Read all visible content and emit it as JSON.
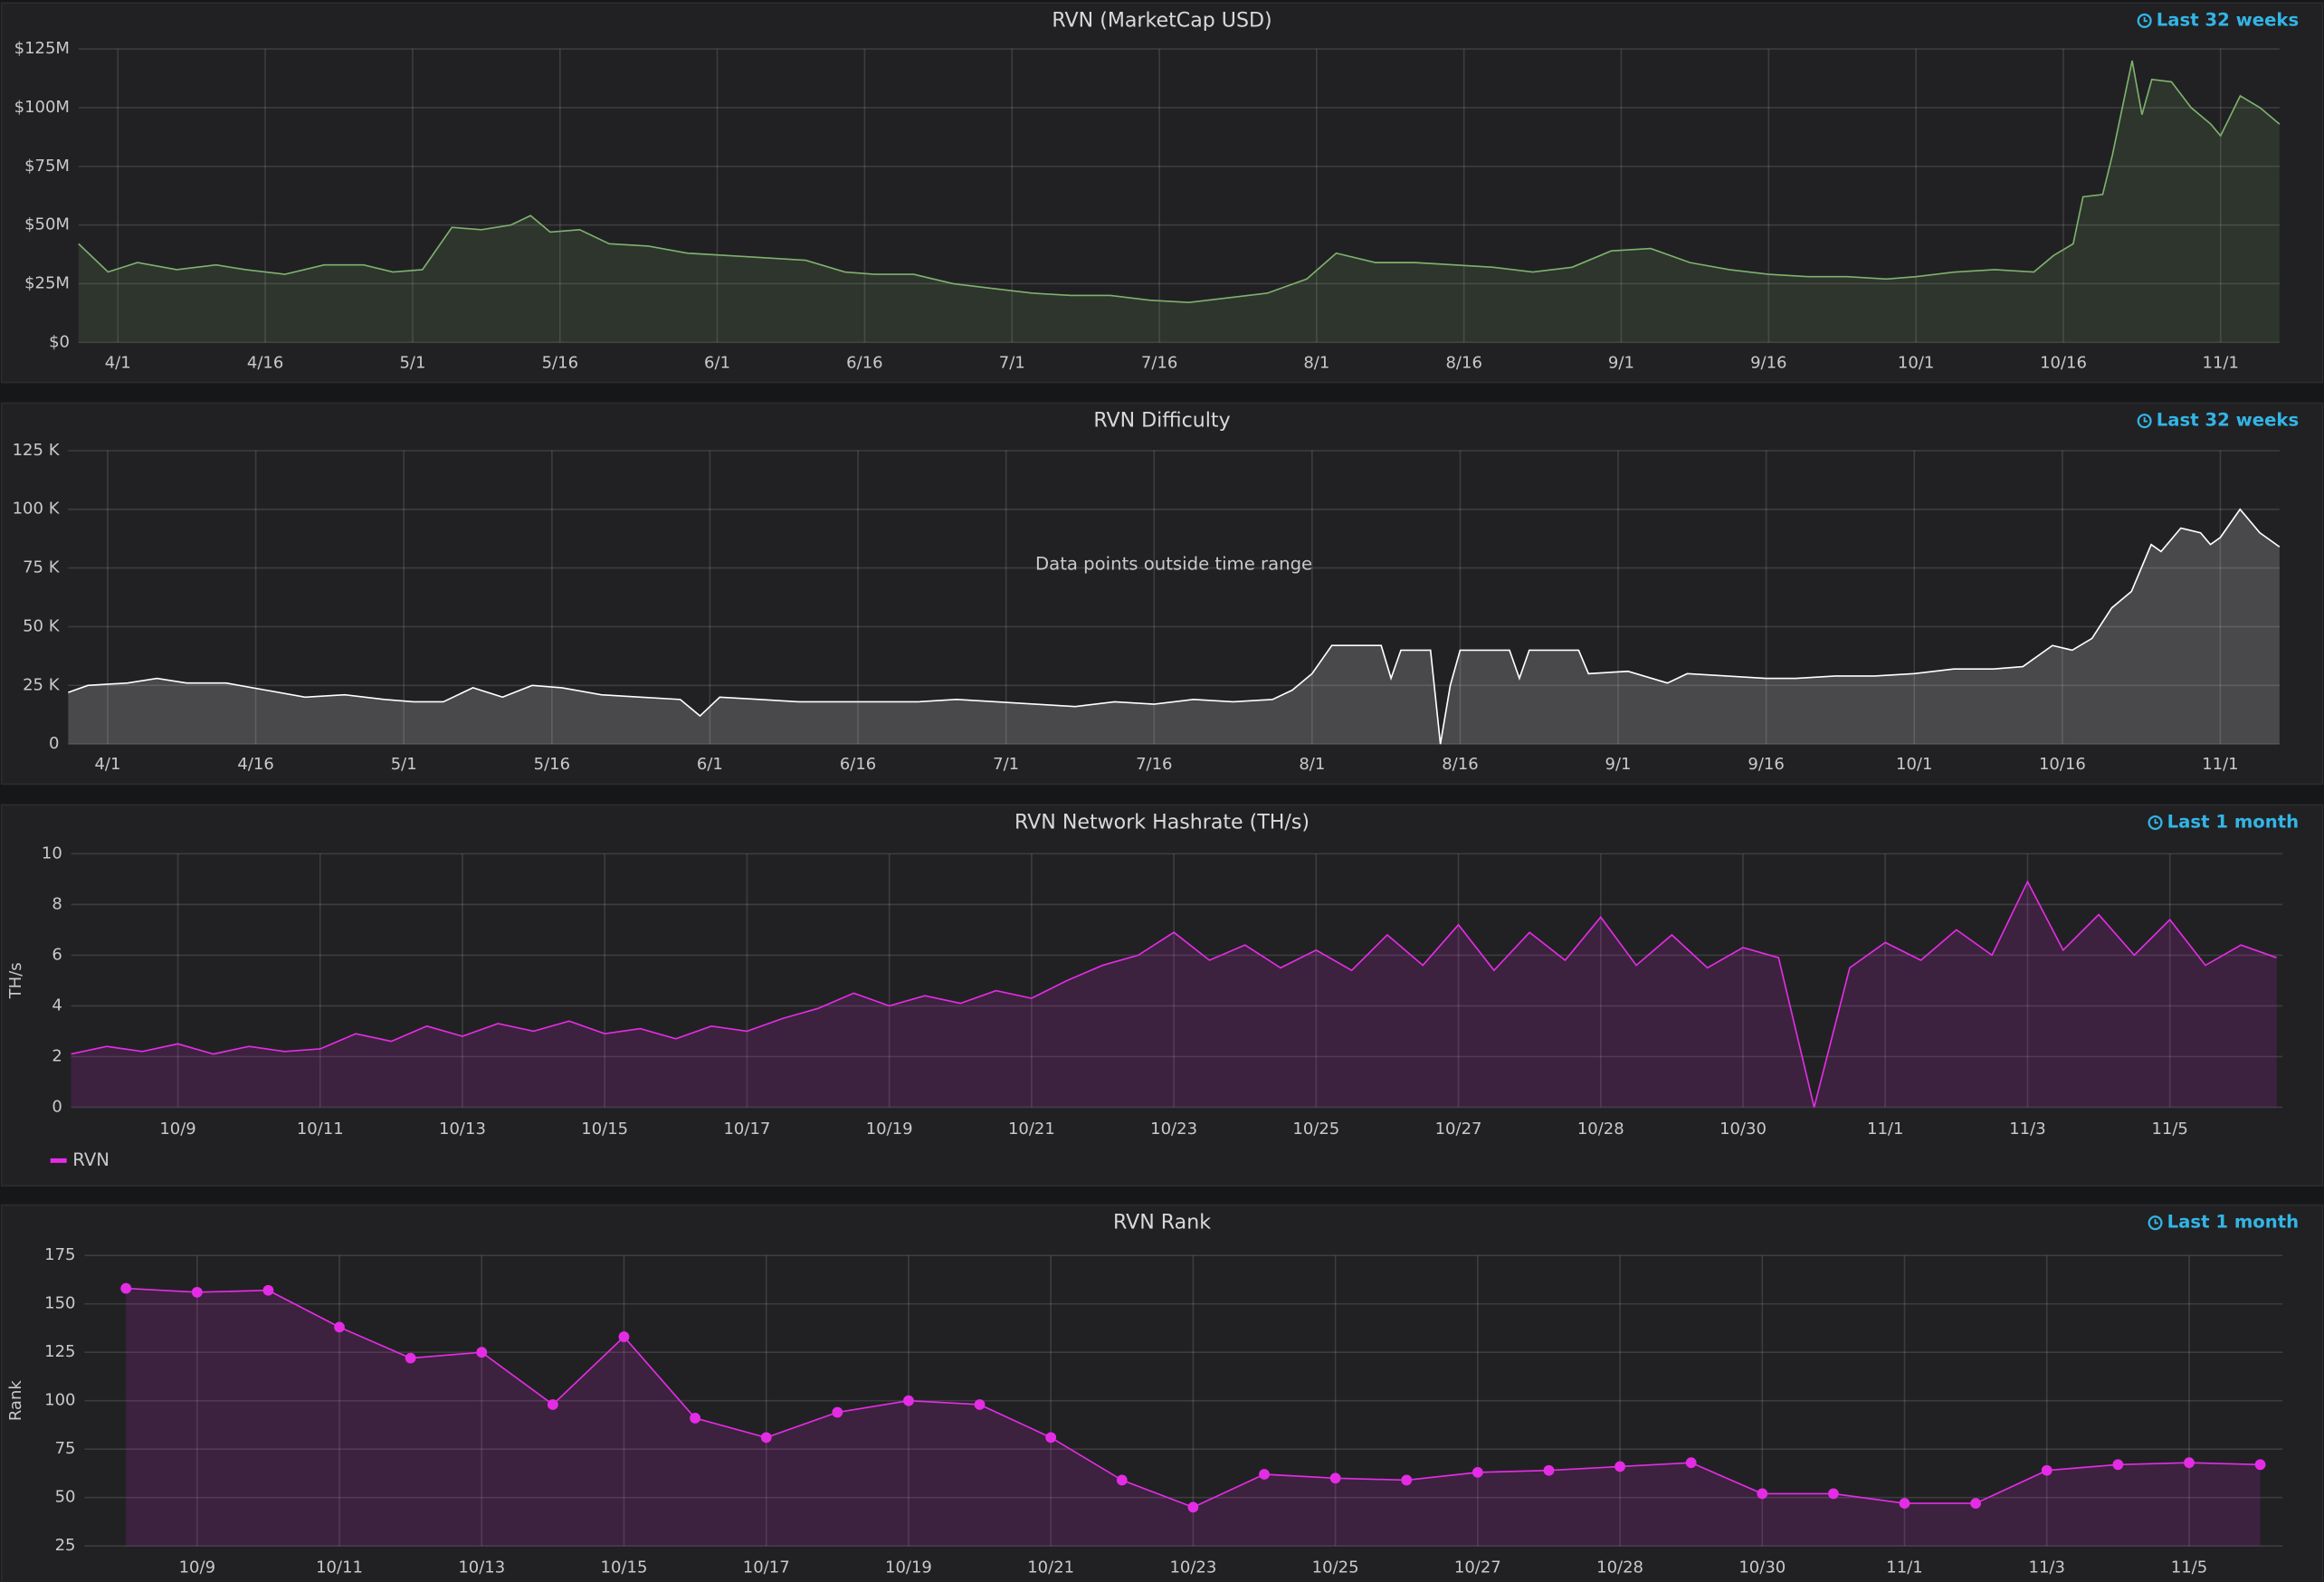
{
  "chart_data": [
    {
      "type": "line",
      "title": "RVN (MarketCap USD)",
      "time_range": "Last 32 weeks",
      "color": "#7eb26d",
      "xlim": [
        "3/28",
        "11/7"
      ],
      "xticks": [
        "4/1",
        "4/16",
        "5/1",
        "5/16",
        "6/1",
        "6/16",
        "7/1",
        "7/16",
        "8/1",
        "8/16",
        "9/1",
        "9/16",
        "10/1",
        "10/16",
        "11/1"
      ],
      "ylim": [
        0,
        125
      ],
      "yticks": [
        {
          "value": 0,
          "label": "$0"
        },
        {
          "value": 25,
          "label": "$25M"
        },
        {
          "value": 50,
          "label": "$50M"
        },
        {
          "value": 75,
          "label": "$75M"
        },
        {
          "value": 100,
          "label": "$100M"
        },
        {
          "value": 125,
          "label": "$125M"
        }
      ],
      "grid": true,
      "x": [
        "3/28",
        "3/31",
        "4/3",
        "4/7",
        "4/11",
        "4/14",
        "4/18",
        "4/22",
        "4/26",
        "4/29",
        "5/2",
        "5/5",
        "5/8",
        "5/11",
        "5/13",
        "5/15",
        "5/18",
        "5/21",
        "5/25",
        "5/29",
        "6/2",
        "6/6",
        "6/10",
        "6/14",
        "6/17",
        "6/21",
        "6/25",
        "6/29",
        "7/3",
        "7/7",
        "7/11",
        "7/15",
        "7/19",
        "7/23",
        "7/27",
        "7/31",
        "8/3",
        "8/7",
        "8/11",
        "8/15",
        "8/19",
        "8/23",
        "8/27",
        "8/31",
        "9/4",
        "9/8",
        "9/12",
        "9/16",
        "9/20",
        "9/24",
        "9/28",
        "10/1",
        "10/5",
        "10/9",
        "10/13",
        "10/15",
        "10/17",
        "10/18",
        "10/20",
        "10/21",
        "10/23",
        "10/24",
        "10/25",
        "10/27",
        "10/29",
        "10/31",
        "11/1",
        "11/3",
        "11/5",
        "11/7"
      ],
      "values": [
        42,
        30,
        34,
        31,
        33,
        31,
        29,
        33,
        33,
        30,
        31,
        49,
        48,
        50,
        54,
        47,
        48,
        42,
        41,
        38,
        37,
        36,
        35,
        30,
        29,
        29,
        25,
        23,
        21,
        20,
        20,
        18,
        17,
        19,
        21,
        27,
        38,
        34,
        34,
        33,
        32,
        30,
        32,
        39,
        40,
        34,
        31,
        29,
        28,
        28,
        27,
        28,
        30,
        31,
        30,
        37,
        42,
        62,
        63,
        80,
        120,
        97,
        112,
        111,
        100,
        93,
        88,
        105,
        100,
        93
      ]
    },
    {
      "type": "line",
      "title": "RVN Difficulty",
      "time_range": "Last 32 weeks",
      "color": "#ffffff",
      "annotation": "Data points outside time range",
      "xlim": [
        "3/28",
        "11/7"
      ],
      "xticks": [
        "4/1",
        "4/16",
        "5/1",
        "5/16",
        "6/1",
        "6/16",
        "7/1",
        "7/16",
        "8/1",
        "8/16",
        "9/1",
        "9/16",
        "10/1",
        "10/16",
        "11/1"
      ],
      "ylim": [
        0,
        125
      ],
      "yticks": [
        0,
        {
          "value": 25,
          "label": "25 K"
        },
        {
          "value": 50,
          "label": "50 K"
        },
        {
          "value": 75,
          "label": "75 K"
        },
        {
          "value": 100,
          "label": "100 K"
        },
        {
          "value": 125,
          "label": "125 K"
        }
      ],
      "grid": true,
      "x": [
        "3/28",
        "3/30",
        "4/3",
        "4/6",
        "4/9",
        "4/13",
        "4/17",
        "4/21",
        "4/25",
        "4/29",
        "5/2",
        "5/5",
        "5/8",
        "5/11",
        "5/14",
        "5/17",
        "5/21",
        "5/25",
        "5/29",
        "5/31",
        "6/2",
        "6/6",
        "6/10",
        "6/14",
        "6/18",
        "6/22",
        "6/26",
        "6/30",
        "7/4",
        "7/8",
        "7/12",
        "7/16",
        "7/20",
        "7/24",
        "7/28",
        "7/30",
        "8/1",
        "8/3",
        "8/8",
        "8/9",
        "8/10",
        "8/13",
        "8/14",
        "8/15",
        "8/16",
        "8/21",
        "8/22",
        "8/23",
        "8/28",
        "8/29",
        "9/2",
        "9/6",
        "9/8",
        "9/12",
        "9/16",
        "9/19",
        "9/23",
        "9/27",
        "10/1",
        "10/5",
        "10/9",
        "10/12",
        "10/15",
        "10/17",
        "10/19",
        "10/21",
        "10/23",
        "10/25",
        "10/26",
        "10/28",
        "10/30",
        "10/31",
        "11/1",
        "11/3",
        "11/5",
        "11/7"
      ],
      "values": [
        22,
        25,
        26,
        28,
        26,
        26,
        23,
        20,
        21,
        19,
        18,
        18,
        24,
        20,
        25,
        24,
        21,
        20,
        19,
        12,
        20,
        19,
        18,
        18,
        18,
        18,
        19,
        18,
        17,
        16,
        18,
        17,
        19,
        18,
        19,
        23,
        30,
        42,
        42,
        28,
        40,
        40,
        0,
        25,
        40,
        40,
        28,
        40,
        40,
        30,
        31,
        26,
        30,
        29,
        28,
        28,
        29,
        29,
        30,
        32,
        32,
        33,
        42,
        40,
        45,
        58,
        65,
        85,
        82,
        92,
        90,
        85,
        88,
        100,
        90,
        84
      ]
    },
    {
      "type": "line",
      "title": "RVN Network Hashrate (TH/s)",
      "time_range": "Last 1 month",
      "ylabel": "TH/s",
      "legend": "bottom-left",
      "ylim": [
        0,
        10
      ],
      "yticks": [
        0,
        2,
        4,
        6,
        8,
        10
      ],
      "grid": true,
      "categories": [
        null,
        null,
        null,
        "10/9",
        null,
        null,
        null,
        "10/11",
        null,
        null,
        null,
        "10/13",
        null,
        null,
        null,
        "10/15",
        null,
        null,
        null,
        "10/17",
        null,
        null,
        null,
        "10/19",
        null,
        null,
        null,
        "10/21",
        null,
        null,
        null,
        "10/23",
        null,
        null,
        null,
        "10/25",
        null,
        null,
        null,
        "10/27",
        null,
        null,
        null,
        "10/28",
        null,
        null,
        null,
        "10/30",
        null,
        null,
        null,
        "11/1",
        null,
        null,
        null,
        "11/3",
        null,
        null,
        null,
        "11/5",
        null,
        null,
        null
      ],
      "series": [
        {
          "name": "RVN",
          "color": "#e52ce5",
          "values": [
            2.1,
            2.4,
            2.2,
            2.5,
            2.1,
            2.4,
            2.2,
            2.3,
            2.9,
            2.6,
            3.2,
            2.8,
            3.3,
            3.0,
            3.4,
            2.9,
            3.1,
            2.7,
            3.2,
            3.0,
            3.5,
            3.9,
            4.5,
            4.0,
            4.4,
            4.1,
            4.6,
            4.3,
            5.0,
            5.6,
            6.0,
            6.9,
            5.8,
            6.4,
            5.5,
            6.2,
            5.4,
            6.8,
            5.6,
            7.2,
            5.4,
            6.9,
            5.8,
            7.5,
            5.6,
            6.8,
            5.5,
            6.3,
            5.9,
            0,
            5.5,
            6.5,
            5.8,
            7.0,
            6.0,
            8.9,
            6.2,
            7.6,
            6.0,
            7.4,
            5.6,
            6.4,
            5.9
          ]
        }
      ]
    },
    {
      "type": "line",
      "title": "RVN Rank",
      "time_range": "Last 1 month",
      "ylabel": "Rank",
      "color": "#e52ce5",
      "markers": true,
      "ylim": [
        25,
        175
      ],
      "yticks": [
        25,
        50,
        75,
        100,
        125,
        150,
        175
      ],
      "grid": true,
      "categories": [
        null,
        "10/9",
        null,
        "10/11",
        null,
        "10/13",
        null,
        "10/15",
        null,
        "10/17",
        null,
        "10/19",
        null,
        "10/21",
        null,
        "10/23",
        null,
        "10/25",
        null,
        "10/27",
        null,
        "10/28",
        null,
        "10/30",
        null,
        "11/1",
        null,
        "11/3",
        null,
        "11/5",
        null
      ],
      "values": [
        158,
        156,
        157,
        138,
        122,
        125,
        98,
        133,
        91,
        81,
        94,
        100,
        98,
        81,
        59,
        45,
        62,
        60,
        59,
        63,
        64,
        66,
        68,
        52,
        52,
        47,
        47,
        64,
        67,
        68,
        67
      ]
    }
  ]
}
